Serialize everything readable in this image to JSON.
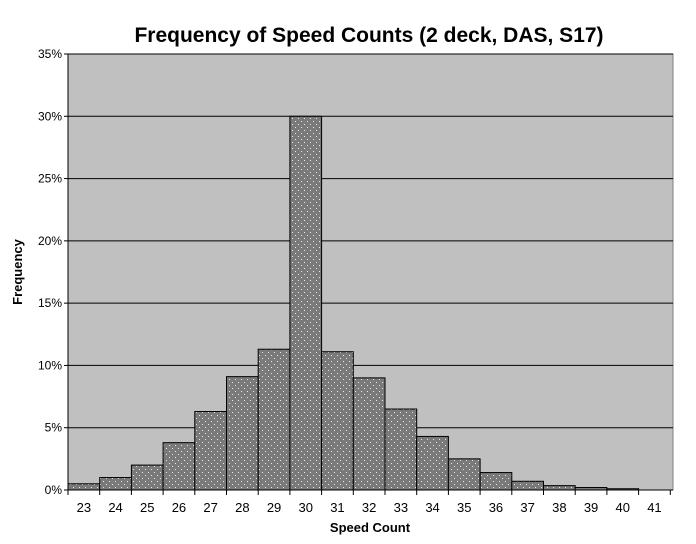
{
  "chart_data": {
    "type": "bar",
    "title": "Frequency of Speed Counts (2 deck, DAS, S17)",
    "xlabel": "Speed Count",
    "ylabel": "Frequency",
    "categories": [
      "23",
      "24",
      "25",
      "26",
      "27",
      "28",
      "29",
      "30",
      "31",
      "32",
      "33",
      "34",
      "35",
      "36",
      "37",
      "38",
      "39",
      "40",
      "41"
    ],
    "values": [
      0.5,
      1.0,
      2.0,
      3.8,
      6.3,
      9.1,
      11.3,
      30.0,
      11.1,
      9.0,
      6.5,
      4.3,
      2.5,
      1.4,
      0.7,
      0.35,
      0.2,
      0.1,
      0.0
    ],
    "ylim": [
      0,
      35
    ],
    "yticks": [
      0,
      5,
      10,
      15,
      20,
      25,
      30,
      35
    ],
    "ytick_labels": [
      "0%",
      "5%",
      "10%",
      "15%",
      "20%",
      "25%",
      "30%",
      "35%"
    ],
    "grid": true,
    "legend": "none",
    "colors": {
      "plot_background": "#c0c0c0",
      "bar_fill": "#7a7a7a",
      "bar_dots": "#e8e8e8",
      "bar_stroke": "#000000",
      "gridline": "#000000"
    }
  }
}
